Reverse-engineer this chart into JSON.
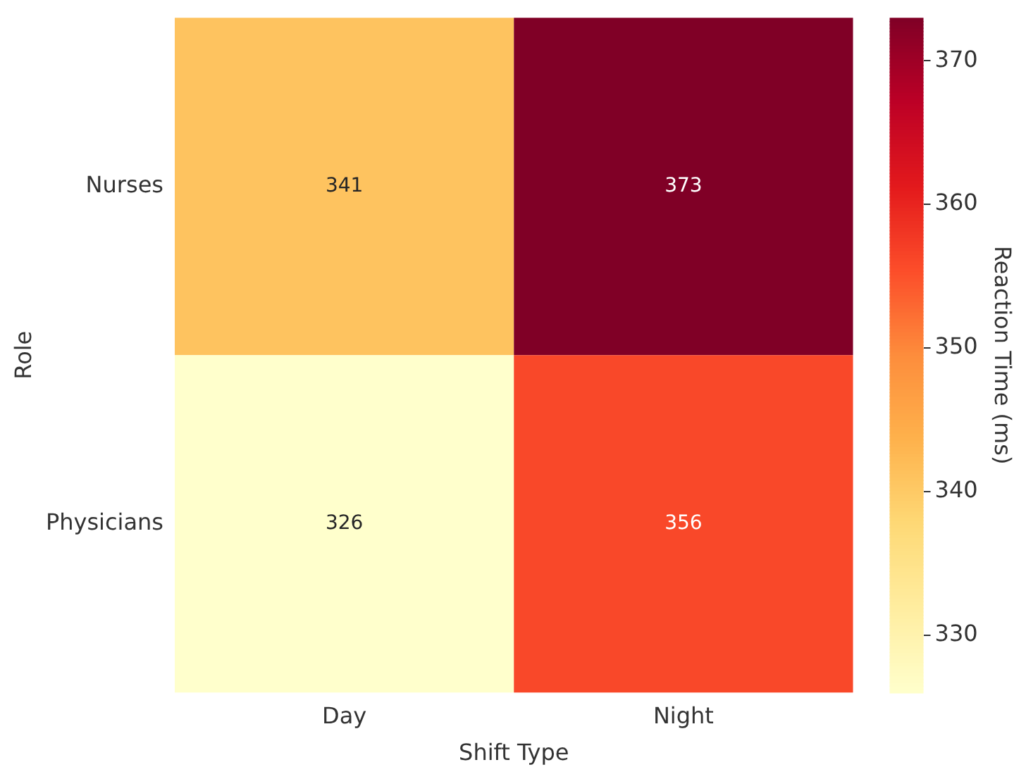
{
  "chart_data": {
    "type": "heatmap",
    "xlabel": "Shift Type",
    "ylabel": "Role",
    "clabel": "Reaction Time (ms)",
    "categories": [
      "Day",
      "Night"
    ],
    "y_categories": [
      "Nurses",
      "Physicians"
    ],
    "cells": [
      [
        341,
        373
      ],
      [
        326,
        356
      ]
    ],
    "data_labels": true,
    "clim": [
      326,
      373
    ],
    "cticks": [
      330,
      340,
      350,
      360,
      370
    ]
  }
}
